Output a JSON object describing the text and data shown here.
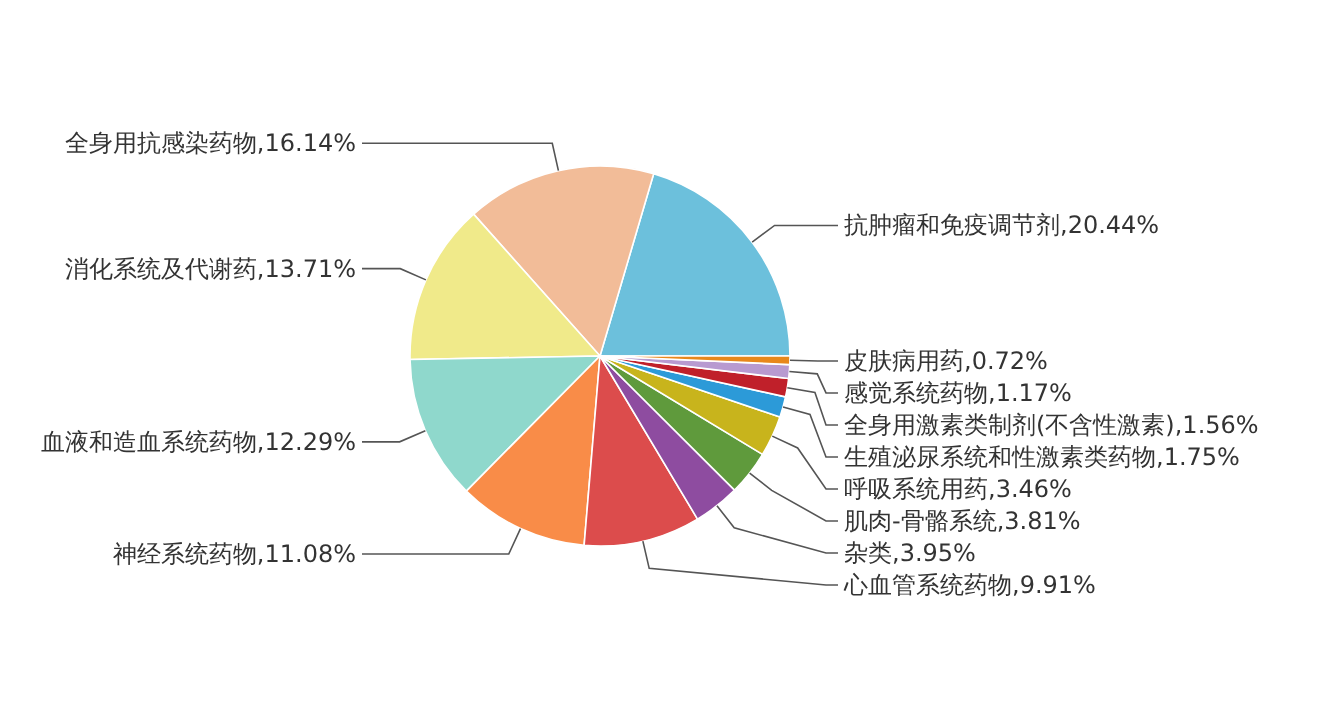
{
  "chart_data": {
    "type": "pie",
    "categories": [
      "抗肿瘤和免疫调节剂",
      "全身用抗感染药物",
      "消化系统及代谢药",
      "血液和造血系统药物",
      "神经系统药物",
      "心血管系统药物",
      "杂类",
      "肌肉-骨骼系统",
      "呼吸系统用药",
      "生殖泌尿系统和性激素类药物",
      "全身用激素类制剂(不含性激素)",
      "感觉系统药物",
      "皮肤病用药"
    ],
    "values": [
      20.44,
      16.14,
      13.71,
      12.29,
      11.08,
      9.91,
      3.95,
      3.81,
      3.46,
      1.75,
      1.56,
      1.17,
      0.72
    ],
    "colors": [
      "#6cc0dc",
      "#f2bc98",
      "#f0ea8a",
      "#8fd8cc",
      "#f98c48",
      "#dc4c4c",
      "#8e4ca0",
      "#5f9a3c",
      "#c8b41c",
      "#2c9ad8",
      "#c0202a",
      "#b89ad0",
      "#e8881c"
    ],
    "value_labels": [
      "20.44%",
      "16.14%",
      "13.71%",
      "12.29%",
      "11.08%",
      "9.91%",
      "3.95%",
      "3.81%",
      "3.46%",
      "1.75%",
      "1.56%",
      "1.17%",
      "0.72%"
    ]
  }
}
